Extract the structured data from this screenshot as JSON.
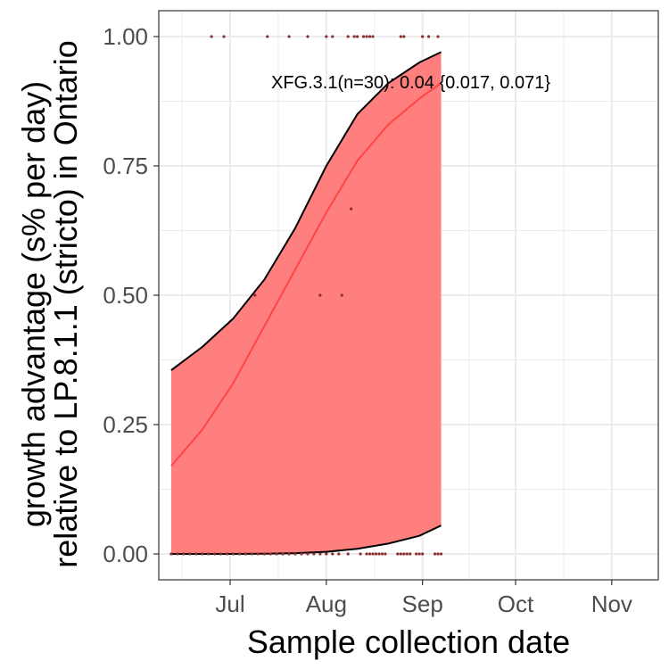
{
  "chart_data": {
    "type": "area",
    "title": "",
    "xlabel": "Sample collection date",
    "ylabel_lines": [
      "growth advantage (s% per day)",
      "relative to LP.8.1.1 (stricto) in Ontario"
    ],
    "x_ticks": [
      {
        "date": "2025-07-01",
        "label": "Jul"
      },
      {
        "date": "2025-08-01",
        "label": "Aug"
      },
      {
        "date": "2025-09-01",
        "label": "Sep"
      },
      {
        "date": "2025-10-01",
        "label": "Oct"
      },
      {
        "date": "2025-11-01",
        "label": "Nov"
      }
    ],
    "x_range": [
      "2025-06-08",
      "2025-11-16"
    ],
    "y_ticks": [
      {
        "value": 0,
        "label": "0.00"
      },
      {
        "value": 0.25,
        "label": "0.25"
      },
      {
        "value": 0.5,
        "label": "0.50"
      },
      {
        "value": 0.75,
        "label": "0.75"
      },
      {
        "value": 1,
        "label": "1.00"
      }
    ],
    "ylim": [
      -0.05,
      1.05
    ],
    "grid": true,
    "annotation": "XFG.3.1(n=30): 0.04 {0.017, 0.071}",
    "colors": {
      "ribbon": "#ff7f7f",
      "fit_line": "#ff4444",
      "ci_border": "#000000",
      "points": "#8b2e2e",
      "grid": "#ebebeb",
      "panel_border": "#333333"
    },
    "fit_line": {
      "dates": [
        "2025-06-12",
        "2025-06-22",
        "2025-07-02",
        "2025-07-12",
        "2025-07-22",
        "2025-08-01",
        "2025-08-11",
        "2025-08-21",
        "2025-08-31",
        "2025-09-07"
      ],
      "values": [
        0.17,
        0.24,
        0.33,
        0.44,
        0.55,
        0.66,
        0.76,
        0.83,
        0.88,
        0.91
      ]
    },
    "ci_upper": {
      "dates": [
        "2025-06-12",
        "2025-06-22",
        "2025-07-02",
        "2025-07-12",
        "2025-07-22",
        "2025-08-01",
        "2025-08-11",
        "2025-08-21",
        "2025-08-31",
        "2025-09-07"
      ],
      "values": [
        0.355,
        0.4,
        0.455,
        0.53,
        0.63,
        0.75,
        0.85,
        0.91,
        0.95,
        0.97
      ]
    },
    "ci_lower": {
      "dates": [
        "2025-06-12",
        "2025-06-22",
        "2025-07-02",
        "2025-07-12",
        "2025-07-22",
        "2025-08-01",
        "2025-08-11",
        "2025-08-21",
        "2025-08-31",
        "2025-09-07"
      ],
      "values": [
        0.0,
        0.0,
        0.0,
        0.0005,
        0.0015,
        0.004,
        0.01,
        0.02,
        0.035,
        0.055
      ]
    },
    "points": [
      {
        "date": "2025-06-25",
        "value": 1
      },
      {
        "date": "2025-06-29",
        "value": 1
      },
      {
        "date": "2025-07-13",
        "value": 1
      },
      {
        "date": "2025-07-20",
        "value": 1
      },
      {
        "date": "2025-07-26",
        "value": 1
      },
      {
        "date": "2025-08-01",
        "value": 1
      },
      {
        "date": "2025-08-03",
        "value": 1
      },
      {
        "date": "2025-08-08",
        "value": 1
      },
      {
        "date": "2025-08-10",
        "value": 1
      },
      {
        "date": "2025-08-11",
        "value": 1
      },
      {
        "date": "2025-08-13",
        "value": 1
      },
      {
        "date": "2025-08-14",
        "value": 1
      },
      {
        "date": "2025-08-15",
        "value": 1
      },
      {
        "date": "2025-08-16",
        "value": 1
      },
      {
        "date": "2025-08-25",
        "value": 1
      },
      {
        "date": "2025-08-26",
        "value": 1
      },
      {
        "date": "2025-09-01",
        "value": 1
      },
      {
        "date": "2025-09-03",
        "value": 1
      },
      {
        "date": "2025-09-06",
        "value": 1
      },
      {
        "date": "2025-08-09",
        "value": 0.667
      },
      {
        "date": "2025-07-09",
        "value": 0.5
      },
      {
        "date": "2025-07-30",
        "value": 0.5
      },
      {
        "date": "2025-08-06",
        "value": 0.5
      },
      {
        "date": "2025-06-12",
        "value": 0
      },
      {
        "date": "2025-06-14",
        "value": 0
      },
      {
        "date": "2025-06-16",
        "value": 0
      },
      {
        "date": "2025-06-18",
        "value": 0
      },
      {
        "date": "2025-06-20",
        "value": 0
      },
      {
        "date": "2025-06-22",
        "value": 0
      },
      {
        "date": "2025-06-24",
        "value": 0
      },
      {
        "date": "2025-06-26",
        "value": 0
      },
      {
        "date": "2025-06-28",
        "value": 0
      },
      {
        "date": "2025-06-30",
        "value": 0
      },
      {
        "date": "2025-07-02",
        "value": 0
      },
      {
        "date": "2025-07-04",
        "value": 0
      },
      {
        "date": "2025-07-06",
        "value": 0
      },
      {
        "date": "2025-07-08",
        "value": 0
      },
      {
        "date": "2025-07-10",
        "value": 0
      },
      {
        "date": "2025-07-12",
        "value": 0
      },
      {
        "date": "2025-07-14",
        "value": 0
      },
      {
        "date": "2025-07-16",
        "value": 0
      },
      {
        "date": "2025-07-18",
        "value": 0
      },
      {
        "date": "2025-07-20",
        "value": 0
      },
      {
        "date": "2025-07-22",
        "value": 0
      },
      {
        "date": "2025-07-24",
        "value": 0
      },
      {
        "date": "2025-07-26",
        "value": 0
      },
      {
        "date": "2025-07-28",
        "value": 0
      },
      {
        "date": "2025-07-30",
        "value": 0
      },
      {
        "date": "2025-08-01",
        "value": 0
      },
      {
        "date": "2025-08-03",
        "value": 0
      },
      {
        "date": "2025-08-05",
        "value": 0
      },
      {
        "date": "2025-08-08",
        "value": 0
      },
      {
        "date": "2025-08-12",
        "value": 0
      },
      {
        "date": "2025-08-14",
        "value": 0
      },
      {
        "date": "2025-08-15",
        "value": 0
      },
      {
        "date": "2025-08-16",
        "value": 0
      },
      {
        "date": "2025-08-17",
        "value": 0
      },
      {
        "date": "2025-08-18",
        "value": 0
      },
      {
        "date": "2025-08-19",
        "value": 0
      },
      {
        "date": "2025-08-20",
        "value": 0
      },
      {
        "date": "2025-08-24",
        "value": 0
      },
      {
        "date": "2025-08-25",
        "value": 0
      },
      {
        "date": "2025-08-26",
        "value": 0
      },
      {
        "date": "2025-08-27",
        "value": 0
      },
      {
        "date": "2025-08-28",
        "value": 0
      },
      {
        "date": "2025-08-30",
        "value": 0
      },
      {
        "date": "2025-08-31",
        "value": 0
      },
      {
        "date": "2025-09-01",
        "value": 0
      },
      {
        "date": "2025-09-05",
        "value": 0
      },
      {
        "date": "2025-09-06",
        "value": 0
      },
      {
        "date": "2025-09-07",
        "value": 0
      }
    ]
  }
}
